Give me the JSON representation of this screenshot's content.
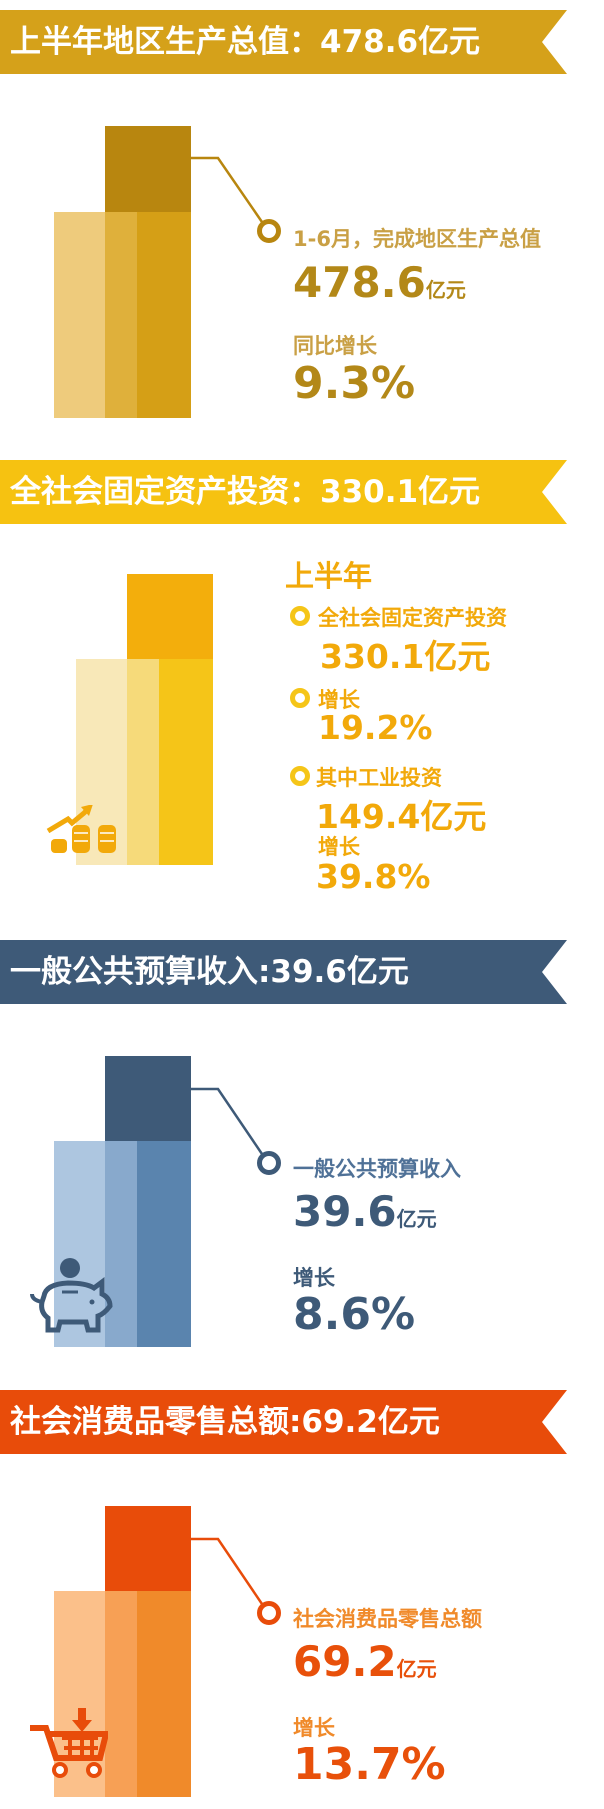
{
  "sections": [
    {
      "banner": "上半年地区生产总值：478.6亿元",
      "label": "1-6月，完成地区生产总值",
      "value": "478.6",
      "unit": "亿元",
      "growth_label": "同比增长",
      "growth_value": "9.3%",
      "colors": {
        "banner": "#D5A11A",
        "top": "#B8860F",
        "bar_light": "#EECB7C",
        "bar_mid": "#DFB03B",
        "bar_main": "#D59F16",
        "text": "#B38818",
        "label": "#C9A045"
      }
    },
    {
      "banner": "全社会固定资产投资：330.1亿元",
      "heading": "上半年",
      "items": [
        {
          "label": "全社会固定资产投资",
          "value": "330.1亿元"
        },
        {
          "label": "增长",
          "value": "19.2%"
        },
        {
          "label": "其中工业投资",
          "value": "149.4亿元"
        },
        {
          "label": "增长",
          "value": "39.8%"
        }
      ],
      "icon": "coins-growth-arrow-icon",
      "colors": {
        "banner": "#F6C211",
        "top": "#F3AE0C",
        "bar_light": "#F8E8B8",
        "bar_mid": "#F6DA7A",
        "bar_main": "#F5C518",
        "text": "#F2A90A"
      }
    },
    {
      "banner": "一般公共预算收入:39.6亿元",
      "label": "一般公共预算收入",
      "value": "39.6",
      "unit": "亿元",
      "growth_label": "增长",
      "growth_value": "8.6%",
      "icon": "piggy-bank-icon",
      "colors": {
        "banner": "#3E5A78",
        "top": "#3E5A78",
        "bar_light": "#ADC6E0",
        "bar_mid": "#88A9CC",
        "bar_main": "#5A84AE",
        "text": "#3E5A78",
        "label": "#4F7197"
      }
    },
    {
      "banner": "社会消费品零售总额:69.2亿元",
      "label": "社会消费品零售总额",
      "value": "69.2",
      "unit": "亿元",
      "growth_label": "增长",
      "growth_value": "13.7%",
      "icon": "shopping-cart-icon",
      "colors": {
        "banner": "#E84C0A",
        "top": "#E84C0A",
        "bar_light": "#FBC08A",
        "bar_mid": "#F7A055",
        "bar_main": "#F08A2A",
        "text": "#E8500A",
        "label": "#F08A2A"
      }
    }
  ]
}
